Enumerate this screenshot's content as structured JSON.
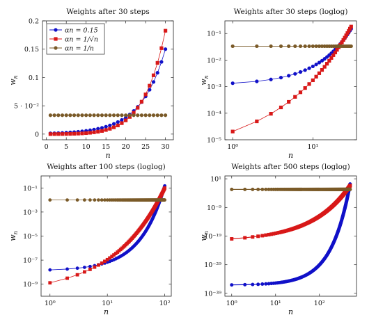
{
  "colors": {
    "constant": "#1010c8",
    "sqrt": "#d81818",
    "harmonic": "#7a5a28"
  },
  "legend": {
    "entries": [
      "αn = 0.15",
      "αn = 1/√n",
      "αn = 1/n"
    ],
    "placement": "top-left"
  },
  "chart_data": [
    {
      "type": "line",
      "title": "Weights after 30 steps",
      "xlabel": "n",
      "ylabel": "wn",
      "xscale": "linear",
      "yscale": "linear",
      "xlim": [
        -1,
        32
      ],
      "ylim": [
        -0.01,
        0.2
      ],
      "xticks": [
        0,
        5,
        10,
        15,
        20,
        25,
        30
      ],
      "xtick_labels": [
        "0",
        "5",
        "10",
        "15",
        "20",
        "25",
        "30"
      ],
      "yticks": [
        0,
        0.05,
        0.1,
        0.15,
        0.2
      ],
      "ytick_labels": [
        "0",
        "5 · 10⁻²",
        "0.1",
        "0.15",
        "0.2"
      ],
      "steps": 30,
      "series": [
        {
          "name": "αn = 0.15",
          "color_key": "constant",
          "marker": "circle",
          "alpha": 0.15
        },
        {
          "name": "αn = 1/√n",
          "color_key": "sqrt",
          "marker": "square",
          "alpha": "1/sqrt(n)"
        },
        {
          "name": "αn = 1/n",
          "color_key": "harmonic",
          "marker": "circle",
          "alpha": "1/n"
        }
      ],
      "legend": true
    },
    {
      "type": "line",
      "title": "Weights after 30 steps (loglog)",
      "xlabel": "n",
      "ylabel": "wn",
      "xscale": "log",
      "yscale": "log",
      "xlim": [
        0.8,
        35
      ],
      "ylim": [
        1e-05,
        0.3
      ],
      "xticks": [
        1,
        10
      ],
      "xtick_labels": [
        "10⁰",
        "10¹"
      ],
      "yticks": [
        1e-05,
        0.0001,
        0.001,
        0.01,
        0.1
      ],
      "ytick_labels": [
        "10⁻⁵",
        "10⁻⁴",
        "10⁻³",
        "10⁻²",
        "10⁻¹"
      ],
      "steps": 30,
      "series": [
        {
          "name": "αn = 0.15",
          "color_key": "constant",
          "marker": "circle",
          "alpha": 0.15
        },
        {
          "name": "αn = 1/√n",
          "color_key": "sqrt",
          "marker": "square",
          "alpha": "1/sqrt(n)"
        },
        {
          "name": "αn = 1/n",
          "color_key": "harmonic",
          "marker": "circle",
          "alpha": "1/n"
        }
      ],
      "legend": false
    },
    {
      "type": "line",
      "title": "Weights after 100 steps (loglog)",
      "xlabel": "n",
      "ylabel": "wn",
      "xscale": "log",
      "yscale": "log",
      "xlim": [
        0.7,
        130
      ],
      "ylim": [
        1e-10,
        1
      ],
      "xticks": [
        1,
        10,
        100
      ],
      "xtick_labels": [
        "10⁰",
        "10¹",
        "10²"
      ],
      "yticks": [
        1e-09,
        1e-07,
        1e-05,
        0.001,
        0.1
      ],
      "ytick_labels": [
        "10⁻⁹",
        "10⁻⁷",
        "10⁻⁵",
        "10⁻³",
        "10⁻¹"
      ],
      "steps": 100,
      "series": [
        {
          "name": "αn = 0.15",
          "color_key": "constant",
          "marker": "circle",
          "alpha": 0.15
        },
        {
          "name": "αn = 1/√n",
          "color_key": "sqrt",
          "marker": "square",
          "alpha": "1/sqrt(n)"
        },
        {
          "name": "αn = 1/n",
          "color_key": "harmonic",
          "marker": "circle",
          "alpha": "1/n"
        }
      ],
      "legend": false
    },
    {
      "type": "line",
      "title": "Weights after 500 steps (loglog)",
      "xlabel": "n",
      "ylabel": "wn",
      "xscale": "log",
      "yscale": "log",
      "xlim": [
        0.7,
        700
      ],
      "ylim": [
        1e-40,
        100.0
      ],
      "xticks": [
        1,
        10,
        100
      ],
      "xtick_labels": [
        "10⁰",
        "10¹",
        "10²"
      ],
      "yticks": [
        1e-39,
        1e-29,
        1e-19,
        1e-09,
        10
      ],
      "ytick_labels": [
        "10⁻³⁹",
        "10⁻²⁹",
        "10⁻¹⁹",
        "10⁻⁹",
        "10¹"
      ],
      "steps": 500,
      "series": [
        {
          "name": "αn = 0.15",
          "color_key": "constant",
          "marker": "circle",
          "alpha": 0.15
        },
        {
          "name": "αn = 1/√n",
          "color_key": "sqrt",
          "marker": "square",
          "alpha": "1/sqrt(n)"
        },
        {
          "name": "αn = 1/n",
          "color_key": "harmonic",
          "marker": "circle",
          "alpha": "1/n"
        }
      ],
      "legend": false
    }
  ]
}
